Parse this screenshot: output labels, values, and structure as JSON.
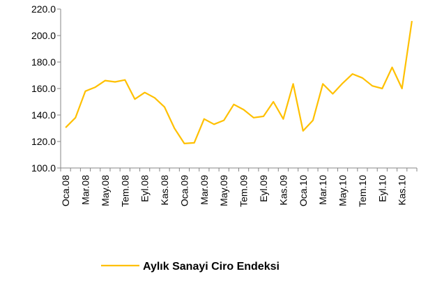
{
  "chart_data": {
    "type": "line",
    "categories": [
      "Oca.08",
      null,
      "Mar.08",
      null,
      "May.08",
      null,
      "Tem.08",
      null,
      "Eyl.08",
      null,
      "Kas.08",
      null,
      "Oca.09",
      null,
      "Mar.09",
      null,
      "May.09",
      null,
      "Tem.09",
      null,
      "Eyl.09",
      null,
      "Kas.09",
      null,
      "Oca.10",
      null,
      "Mar.10",
      null,
      "May.10",
      null,
      "Tem.10",
      null,
      "Eyl.10",
      null,
      "Kas.10",
      null
    ],
    "series": [
      {
        "name": "Aylık Sanayi Ciro Endeksi",
        "color": "#ffc000",
        "values": [
          130.5,
          138,
          158,
          161,
          166,
          165,
          166.5,
          152,
          157,
          153,
          146,
          130,
          118.5,
          119,
          137,
          133,
          136,
          148,
          144,
          138,
          139,
          150,
          137,
          163.5,
          128,
          136,
          163.5,
          156,
          164,
          171,
          168,
          162,
          160,
          176,
          160,
          211
        ]
      }
    ],
    "ylim": [
      100,
      220
    ],
    "yticks": [
      {
        "value": 100,
        "label": "100.0"
      },
      {
        "value": 120,
        "label": "120.0"
      },
      {
        "value": 140,
        "label": "140.0"
      },
      {
        "value": 160,
        "label": "160.0"
      },
      {
        "value": 180,
        "label": "180.0"
      },
      {
        "value": 200,
        "label": "200.0"
      },
      {
        "value": 220,
        "label": "220.0"
      }
    ],
    "grid": false,
    "legend": "bottom"
  }
}
